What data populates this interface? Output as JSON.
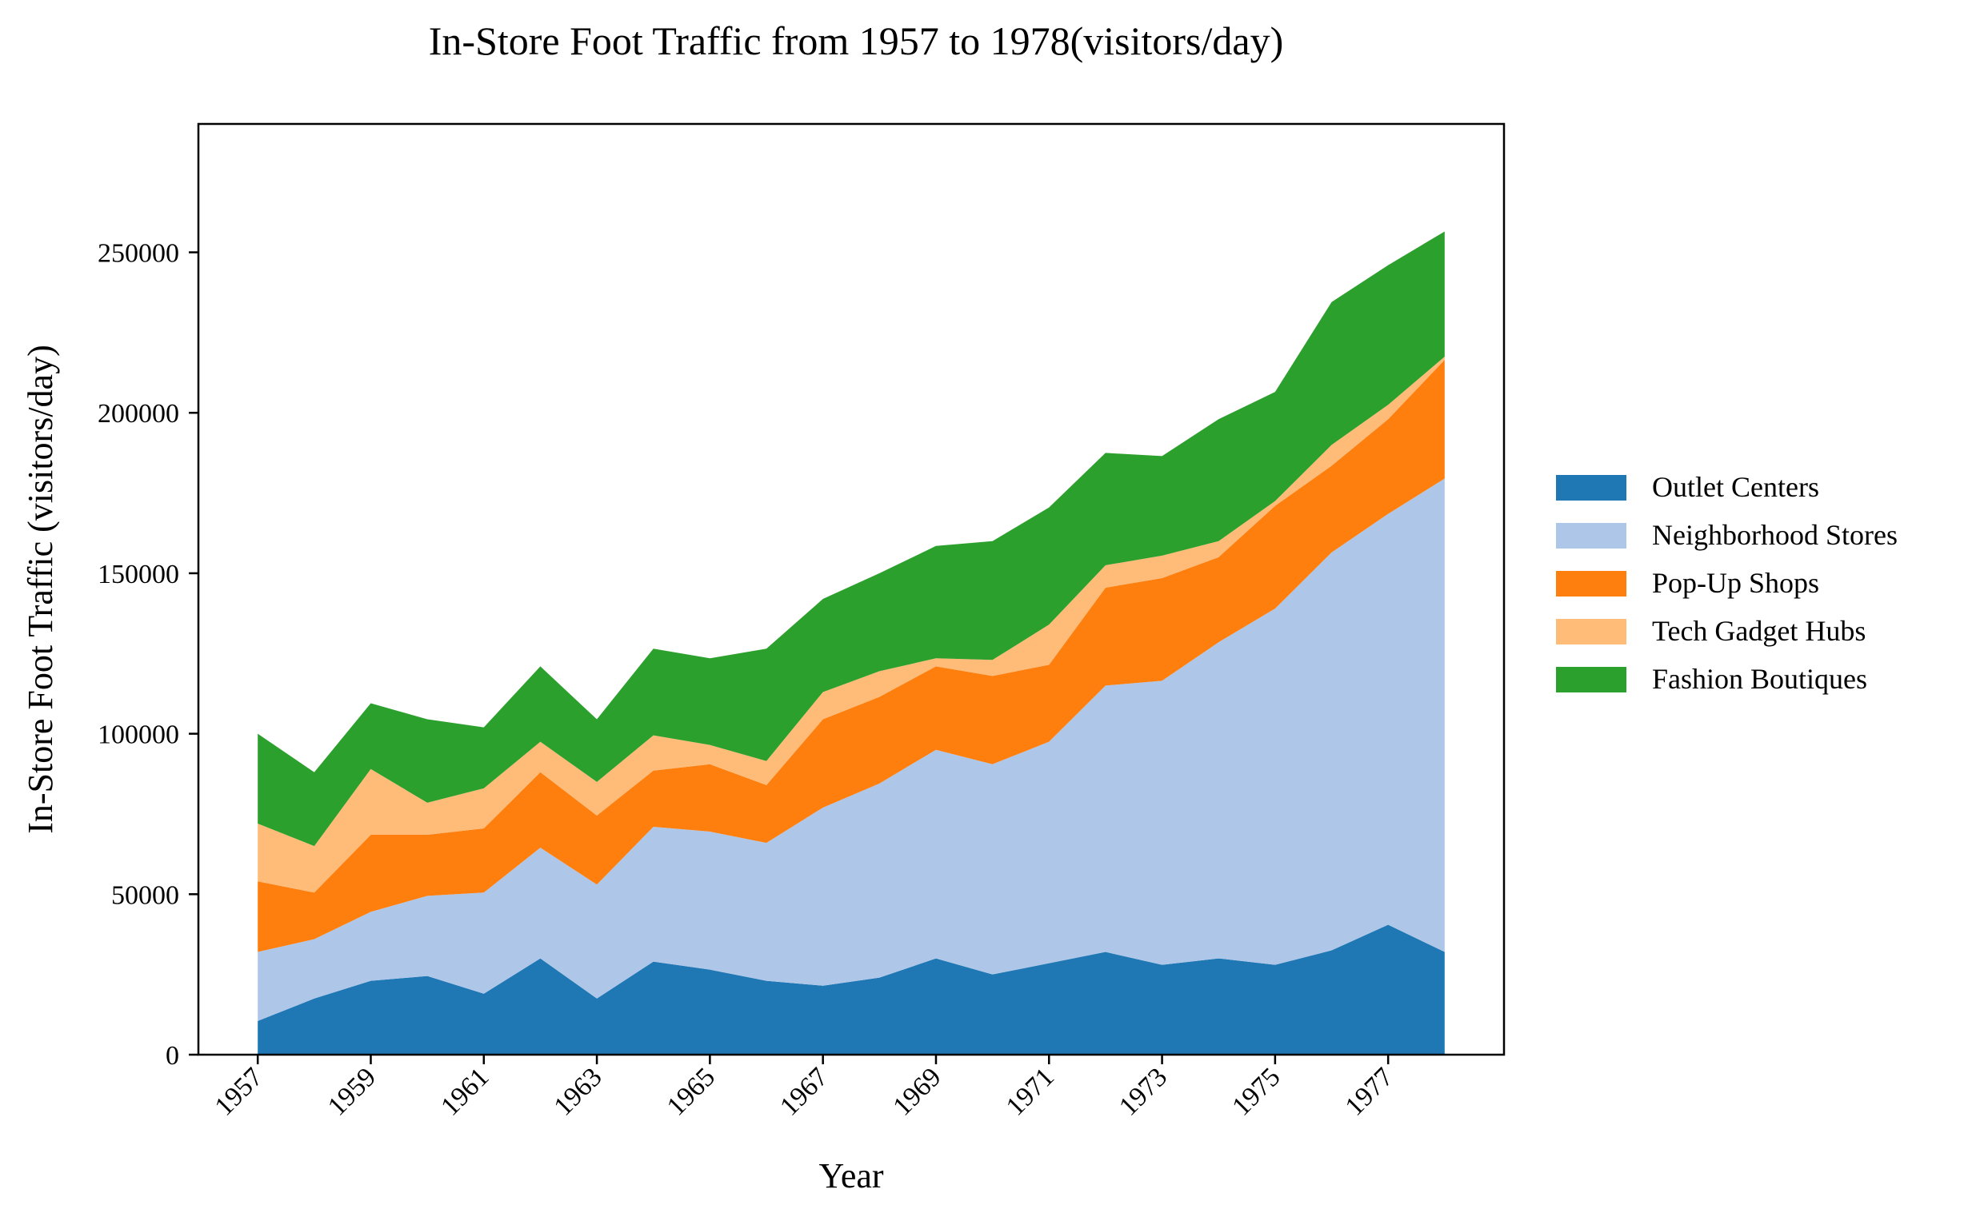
{
  "chart_data": {
    "type": "area",
    "stacked": true,
    "title": "In-Store Foot Traffic from 1957 to 1978(visitors/day)",
    "xlabel": "Year",
    "ylabel": "In-Store Foot Traffic (visitors/day)",
    "x": [
      1957,
      1958,
      1959,
      1960,
      1961,
      1962,
      1963,
      1964,
      1965,
      1966,
      1967,
      1968,
      1969,
      1970,
      1971,
      1972,
      1973,
      1974,
      1975,
      1976,
      1977,
      1978
    ],
    "xticks": [
      "1957",
      "1959",
      "1961",
      "1963",
      "1965",
      "1967",
      "1969",
      "1971",
      "1973",
      "1975",
      "1977"
    ],
    "ylim": [
      0,
      290000
    ],
    "yticks": [
      "0",
      "50000",
      "100000",
      "150000",
      "200000",
      "250000"
    ],
    "grid": false,
    "legend_position": "right",
    "series": [
      {
        "name": "Outlet Centers",
        "color": "#1f77b4",
        "values": [
          10500,
          17500,
          23000,
          24500,
          19000,
          30000,
          17500,
          29000,
          26500,
          23000,
          21500,
          24000,
          30000,
          25000,
          28500,
          32000,
          28000,
          30000,
          28000,
          32500,
          40500,
          32000
        ]
      },
      {
        "name": "Neighborhood Stores",
        "color": "#aec7e8",
        "values": [
          21500,
          18500,
          21500,
          25000,
          31500,
          34500,
          35500,
          42000,
          43000,
          43000,
          55500,
          60500,
          65000,
          65500,
          69000,
          83000,
          88500,
          98500,
          111000,
          124000,
          128000,
          147500
        ]
      },
      {
        "name": "Pop-Up Shops",
        "color": "#ff7f0e",
        "values": [
          22000,
          14500,
          24000,
          19000,
          20000,
          23500,
          21500,
          17500,
          21000,
          18000,
          27500,
          27000,
          26000,
          27500,
          24000,
          30500,
          32000,
          26500,
          32000,
          27000,
          29500,
          37000
        ]
      },
      {
        "name": "Tech Gadget Hubs",
        "color": "#ffbb78",
        "values": [
          18000,
          14500,
          20500,
          10000,
          12500,
          9500,
          10500,
          11000,
          6000,
          7500,
          8500,
          8000,
          2500,
          5000,
          12500,
          7000,
          7000,
          5000,
          1500,
          6500,
          4500,
          1000
        ]
      },
      {
        "name": "Fashion Boutiques",
        "color": "#2ca02c",
        "values": [
          28000,
          23000,
          20500,
          26000,
          19000,
          23500,
          19500,
          27000,
          27000,
          35000,
          29000,
          30500,
          35000,
          37000,
          36500,
          35000,
          31000,
          38000,
          34000,
          44500,
          43500,
          39000
        ]
      }
    ]
  }
}
